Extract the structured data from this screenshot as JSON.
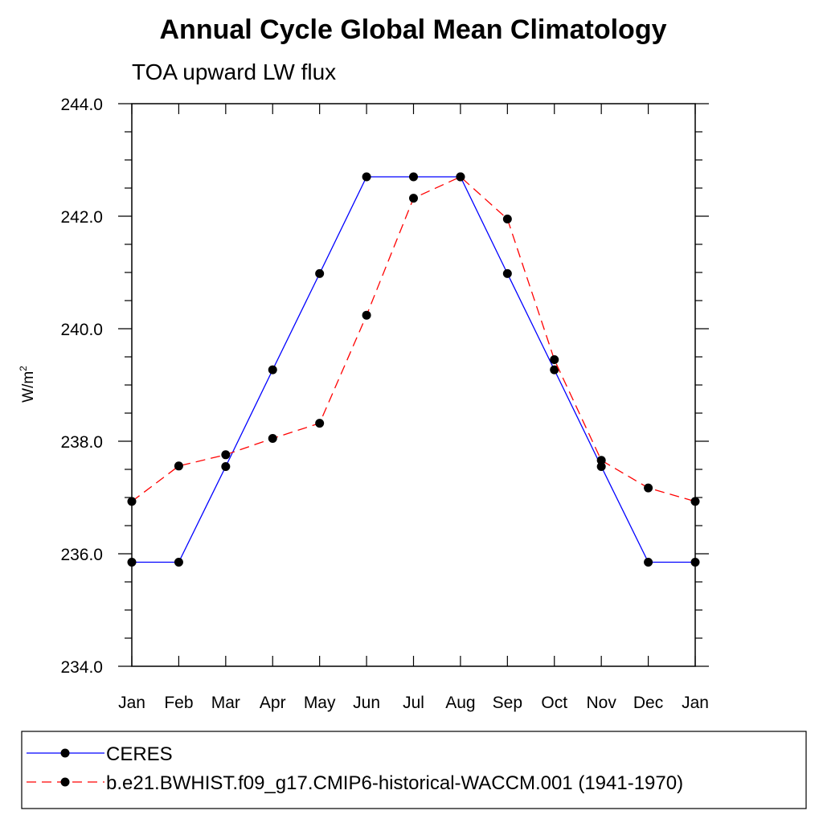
{
  "chart_data": {
    "type": "line",
    "title": "Annual Cycle Global Mean Climatology",
    "subtitle": "TOA upward LW flux",
    "xlabel": "",
    "ylabel": "W/m",
    "ylabel_sup": "2",
    "categories": [
      "Jan",
      "Feb",
      "Mar",
      "Apr",
      "May",
      "Jun",
      "Jul",
      "Aug",
      "Sep",
      "Oct",
      "Nov",
      "Dec",
      "Jan"
    ],
    "yticks": [
      "234.0",
      "236.0",
      "238.0",
      "240.0",
      "242.0",
      "244.0"
    ],
    "ylim": [
      234.0,
      244.0
    ],
    "series": [
      {
        "name": "CERES",
        "color": "#0000ff",
        "style": "solid",
        "values": [
          235.85,
          235.85,
          237.55,
          239.27,
          240.98,
          242.7,
          242.7,
          242.7,
          240.98,
          239.27,
          237.55,
          235.85,
          235.85
        ]
      },
      {
        "name": "b.e21.BWHIST.f09_g17.CMIP6-historical-WACCM.001 (1941-1970)",
        "color": "#ff0000",
        "style": "dashed",
        "values": [
          236.93,
          237.56,
          237.76,
          238.05,
          238.32,
          240.24,
          242.32,
          242.7,
          241.95,
          239.45,
          237.66,
          237.17,
          236.93
        ]
      }
    ],
    "legend_position": "bottom"
  }
}
